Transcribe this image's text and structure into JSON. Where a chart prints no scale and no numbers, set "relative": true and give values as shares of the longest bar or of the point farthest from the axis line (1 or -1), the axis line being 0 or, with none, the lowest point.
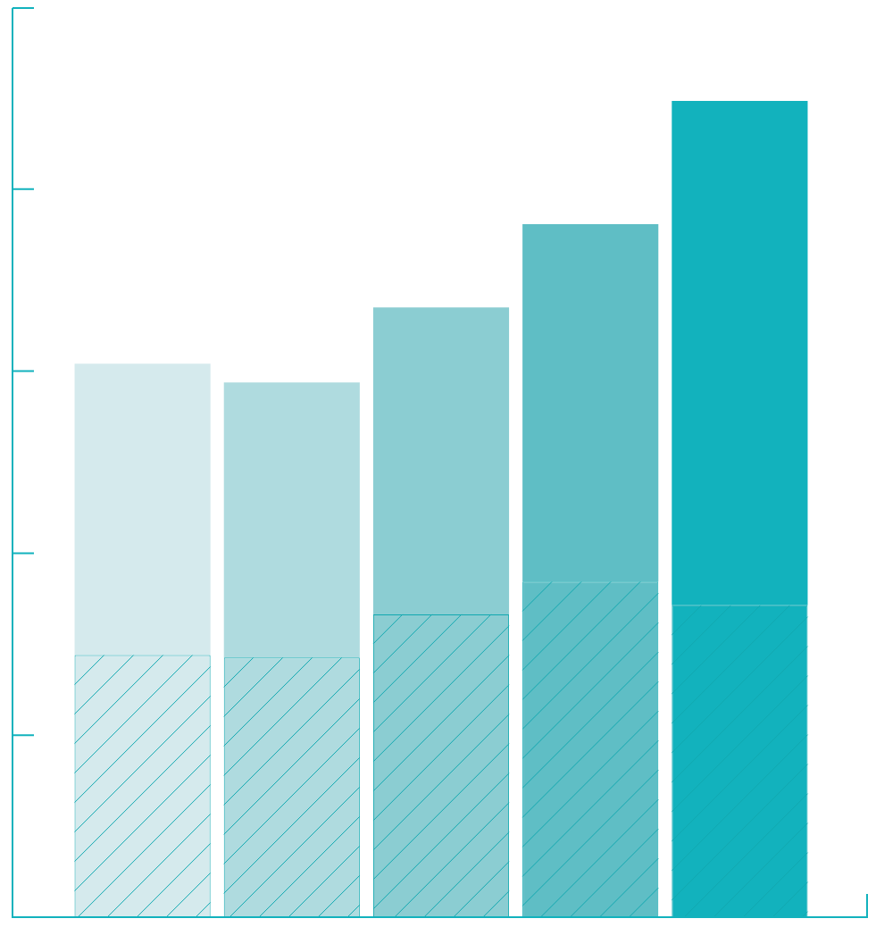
{
  "chart_data": {
    "type": "bar",
    "relative": true,
    "stacked": true,
    "categories": [
      null,
      null,
      null,
      null,
      null
    ],
    "series": [
      {
        "color": "#12a8b0",
        "colors": [
          "#d5eaed",
          "#afdbdf",
          "#8bcdd2",
          "#5fbec5",
          "#12b2bd"
        ],
        "values": [
          0.321,
          0.318,
          0.371,
          0.411,
          0.382
        ]
      },
      {
        "colors": [
          "#d5eaed",
          "#afdbdf",
          "#8bcdd2",
          "#5fbec5",
          "#12b2bd"
        ],
        "values": [
          0.357,
          0.337,
          0.376,
          0.438,
          0.618
        ]
      }
    ],
    "legend": false
  }
}
